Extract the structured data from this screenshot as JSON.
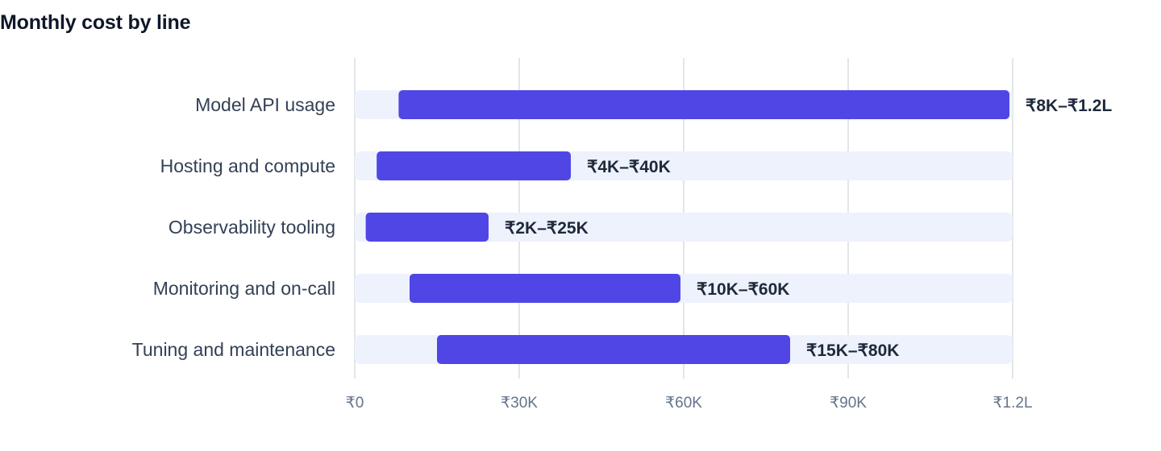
{
  "title": "Monthly cost by line",
  "colors": {
    "bar": "#4f46e5",
    "track": "#eef2fd",
    "grid": "#d9dde3"
  },
  "chart_data": {
    "type": "bar",
    "orientation": "horizontal",
    "subtype": "range",
    "title": "Monthly cost by line",
    "xlabel": "",
    "ylabel": "",
    "xlim": [
      0,
      120000
    ],
    "x_ticks": [
      {
        "value": 0,
        "label": "₹0"
      },
      {
        "value": 30000,
        "label": "₹30K"
      },
      {
        "value": 60000,
        "label": "₹60K"
      },
      {
        "value": 90000,
        "label": "₹90K"
      },
      {
        "value": 120000,
        "label": "₹1.2L"
      }
    ],
    "grid": true,
    "categories": [
      "Model API usage",
      "Hosting and compute",
      "Observability tooling",
      "Monitoring and on-call",
      "Tuning and maintenance"
    ],
    "ranges": [
      {
        "low": 8000,
        "high": 120000,
        "label": "₹8K–₹1.2L"
      },
      {
        "low": 4000,
        "high": 40000,
        "label": "₹4K–₹40K"
      },
      {
        "low": 2000,
        "high": 25000,
        "label": "₹2K–₹25K"
      },
      {
        "low": 10000,
        "high": 60000,
        "label": "₹10K–₹60K"
      },
      {
        "low": 15000,
        "high": 80000,
        "label": "₹15K–₹80K"
      }
    ]
  }
}
